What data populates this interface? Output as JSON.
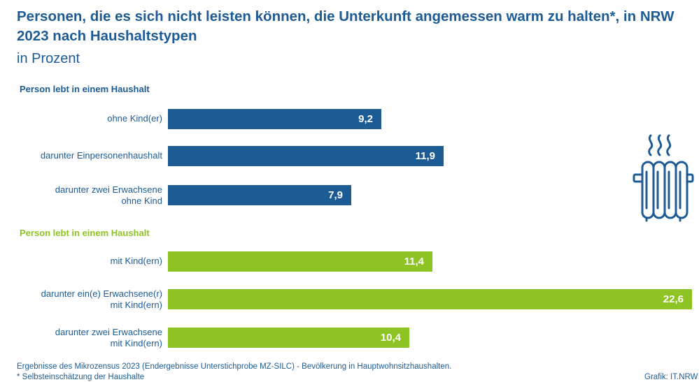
{
  "header": {
    "title": "Personen, die es sich nicht leisten können, die Unterkunft angemessen warm zu halten*, in NRW 2023 nach Haushaltstypen",
    "subtitle": "in Prozent"
  },
  "colors": {
    "blue": "#1d5b95",
    "green": "#8dc322"
  },
  "chart_data": {
    "type": "bar",
    "orientation": "horizontal",
    "title": "Personen, die es sich nicht leisten können, die Unterkunft angemessen warm zu halten*, in NRW 2023 nach Haushaltstypen",
    "ylabel": "in Prozent",
    "xlim": [
      0,
      22.6
    ],
    "grid": false,
    "groups": [
      {
        "label": "Person lebt in einem Haushalt",
        "color": "#1d5b95",
        "items": [
          {
            "label": "ohne Kind(er)",
            "value": 9.2,
            "display": "9,2"
          },
          {
            "label": "darunter Einpersonenhaushalt",
            "value": 11.9,
            "display": "11,9"
          },
          {
            "label": "darunter zwei Erwachsene\nohne Kind",
            "value": 7.9,
            "display": "7,9"
          }
        ]
      },
      {
        "label": "Person lebt in einem Haushalt",
        "color": "#8dc322",
        "items": [
          {
            "label": "mit Kind(ern)",
            "value": 11.4,
            "display": "11,4"
          },
          {
            "label": "darunter ein(e) Erwachsene(r)\nmit Kind(ern)",
            "value": 22.6,
            "display": "22,6"
          },
          {
            "label": "darunter zwei Erwachsene\nmit Kind(ern)",
            "value": 10.4,
            "display": "10,4"
          }
        ]
      }
    ]
  },
  "icon": {
    "name": "radiator-heat-icon"
  },
  "footer": {
    "note": "Ergebnisse des Mikrozensus 2023 (Endergebnisse Unterstichprobe MZ-SILC) - Bevölkerung in Hauptwohnsitzhaushalten.",
    "footnote": "* Selbsteinschätzung der Haushalte",
    "credit": "Grafik: IT.NRW"
  }
}
